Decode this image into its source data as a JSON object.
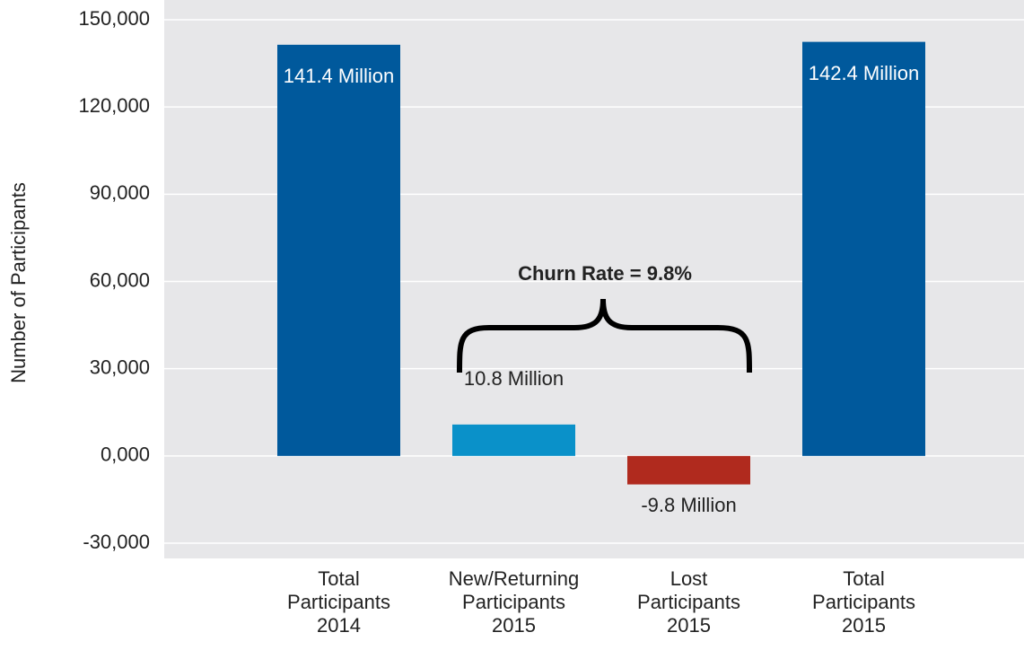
{
  "chart_data": {
    "type": "bar",
    "y_label": "Number of Participants",
    "annotation": "Churn Rate = 9.8%",
    "categories": [
      "Total Participants 2014",
      "New/Returning Participants 2015",
      "Lost Participants 2015",
      "Total Participants 2015"
    ],
    "values": [
      141400,
      10800,
      -9800,
      142400
    ],
    "value_labels": [
      "141.4 Million",
      "10.8 Million",
      "-9.8 Million",
      "142.4 Million"
    ],
    "colors": [
      "#00599c",
      "#0a91c9",
      "#b02a1e",
      "#00599c"
    ],
    "ylim": [
      -30000,
      150000
    ],
    "yticks": [
      {
        "value": -30000,
        "label": "-30,000"
      },
      {
        "value": 0,
        "label": "0,000"
      },
      {
        "value": 30000,
        "label": "30,000"
      },
      {
        "value": 60000,
        "label": "60,000"
      },
      {
        "value": 90000,
        "label": "90,000"
      },
      {
        "value": 120000,
        "label": "120,000"
      },
      {
        "value": 150000,
        "label": "150,000"
      }
    ],
    "grid": true
  }
}
